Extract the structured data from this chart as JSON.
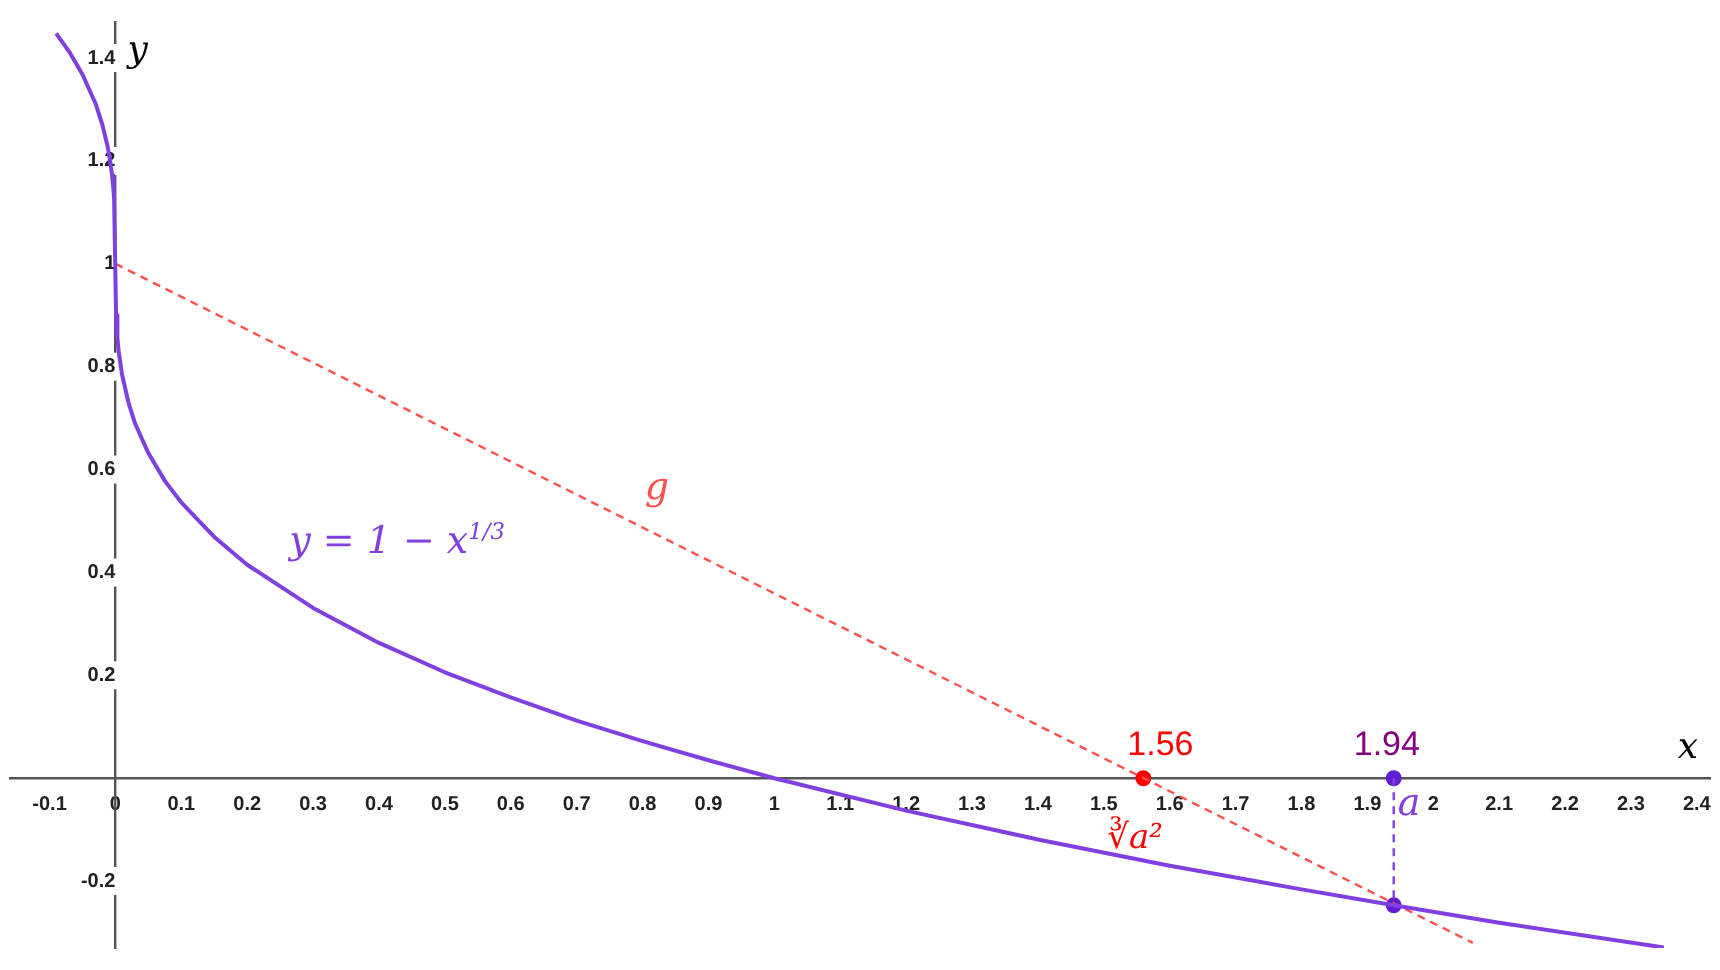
{
  "chart_data": {
    "type": "line",
    "xlabel": "x",
    "ylabel": "y",
    "xlim": [
      -0.16,
      2.42
    ],
    "ylim": [
      -0.33,
      1.47
    ],
    "xticks": [
      -0.1,
      0,
      0.1,
      0.2,
      0.3,
      0.4,
      0.5,
      0.6,
      0.7,
      0.8,
      0.9,
      1,
      1.1,
      1.2,
      1.3,
      1.4,
      1.5,
      1.6,
      1.7,
      1.8,
      1.9,
      2,
      2.1,
      2.2,
      2.3,
      2.4
    ],
    "yticks": [
      -0.2,
      0.2,
      0.4,
      0.6,
      0.8,
      1,
      1.2,
      1.4
    ],
    "grid": false,
    "legend": false,
    "series": [
      {
        "name": "y = 1 − x$^{1/3}$",
        "color": "#8040e0",
        "line_style": "solid",
        "x": [
          -0.09,
          -0.07,
          -0.05,
          -0.03,
          -0.02,
          -0.012,
          -0.008,
          -0.005,
          -0.003,
          -0.002,
          0.001,
          0.003,
          0.005,
          0.01,
          0.02,
          0.03,
          0.05,
          0.075,
          0.1,
          0.15,
          0.2,
          0.3,
          0.4,
          0.5,
          0.6,
          0.7,
          0.8,
          0.9,
          1,
          1.2,
          1.4,
          1.6,
          1.8,
          1.94,
          2.1,
          2.35
        ],
        "values": [
          1.448,
          1.412,
          1.368,
          1.311,
          1.271,
          1.229,
          1.2,
          1.171,
          1.144,
          1.126,
          0.9,
          0.856,
          0.829,
          0.785,
          0.729,
          0.689,
          0.632,
          0.578,
          0.536,
          0.469,
          0.415,
          0.331,
          0.263,
          0.206,
          0.157,
          0.112,
          0.072,
          0.035,
          0,
          -0.063,
          -0.119,
          -0.17,
          -0.216,
          -0.247,
          -0.281,
          -0.329
        ]
      },
      {
        "name": "g",
        "color": "#ff5050",
        "line_style": "dashed",
        "x": [
          0,
          2.06
        ],
        "values": [
          1,
          -0.32
        ]
      },
      {
        "color": "#8040e0",
        "line_style": "dashed",
        "x": [
          1.94,
          1.94
        ],
        "values": [
          0,
          -0.247
        ]
      },
      {
        "type": "scatter",
        "color": "#ff0000",
        "marker": "circle",
        "x": [
          1.56
        ],
        "values": [
          0
        ]
      },
      {
        "type": "scatter",
        "color": "#6020d0",
        "marker": "circle",
        "x": [
          1.94,
          1.94
        ],
        "values": [
          0,
          -0.247
        ]
      }
    ],
    "annotations": [
      "1.56",
      "∛a²",
      "1.94",
      "a"
    ]
  }
}
